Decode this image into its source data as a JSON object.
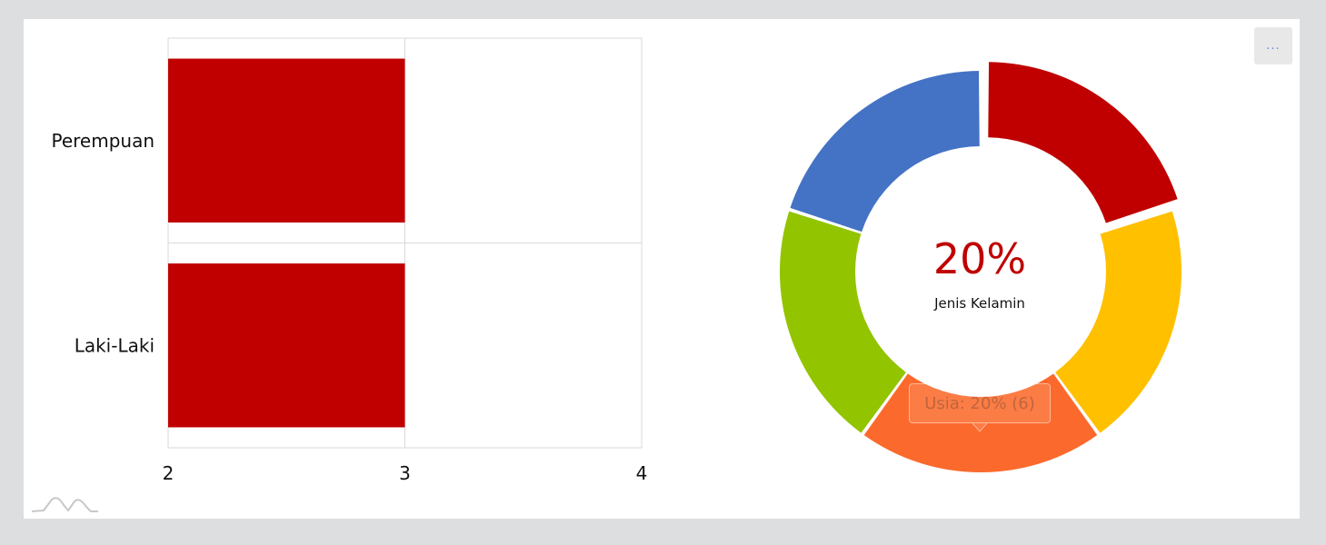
{
  "menu_label": "...",
  "donut_center": {
    "value": "20%",
    "label": "Jenis Kelamin"
  },
  "tooltip": "Usia: 20% (6)",
  "chart_data": [
    {
      "type": "bar",
      "orientation": "horizontal",
      "categories": [
        "Perempuan",
        "Laki-Laki"
      ],
      "values": [
        3,
        3
      ],
      "xticks": [
        "2",
        "3",
        "4"
      ],
      "xlim": [
        2,
        4
      ],
      "color": "#c00000"
    },
    {
      "type": "pie",
      "variant": "donut",
      "center_value": "20%",
      "center_label": "Jenis Kelamin",
      "slices": [
        {
          "color": "#c00000",
          "value": 20,
          "exploded": true
        },
        {
          "color": "#ffc000",
          "value": 20
        },
        {
          "name": "Usia",
          "color": "#fb6a2c",
          "value": 20,
          "count": 6
        },
        {
          "color": "#92c400",
          "value": 20
        },
        {
          "color": "#4472c4",
          "value": 20
        }
      ]
    }
  ]
}
